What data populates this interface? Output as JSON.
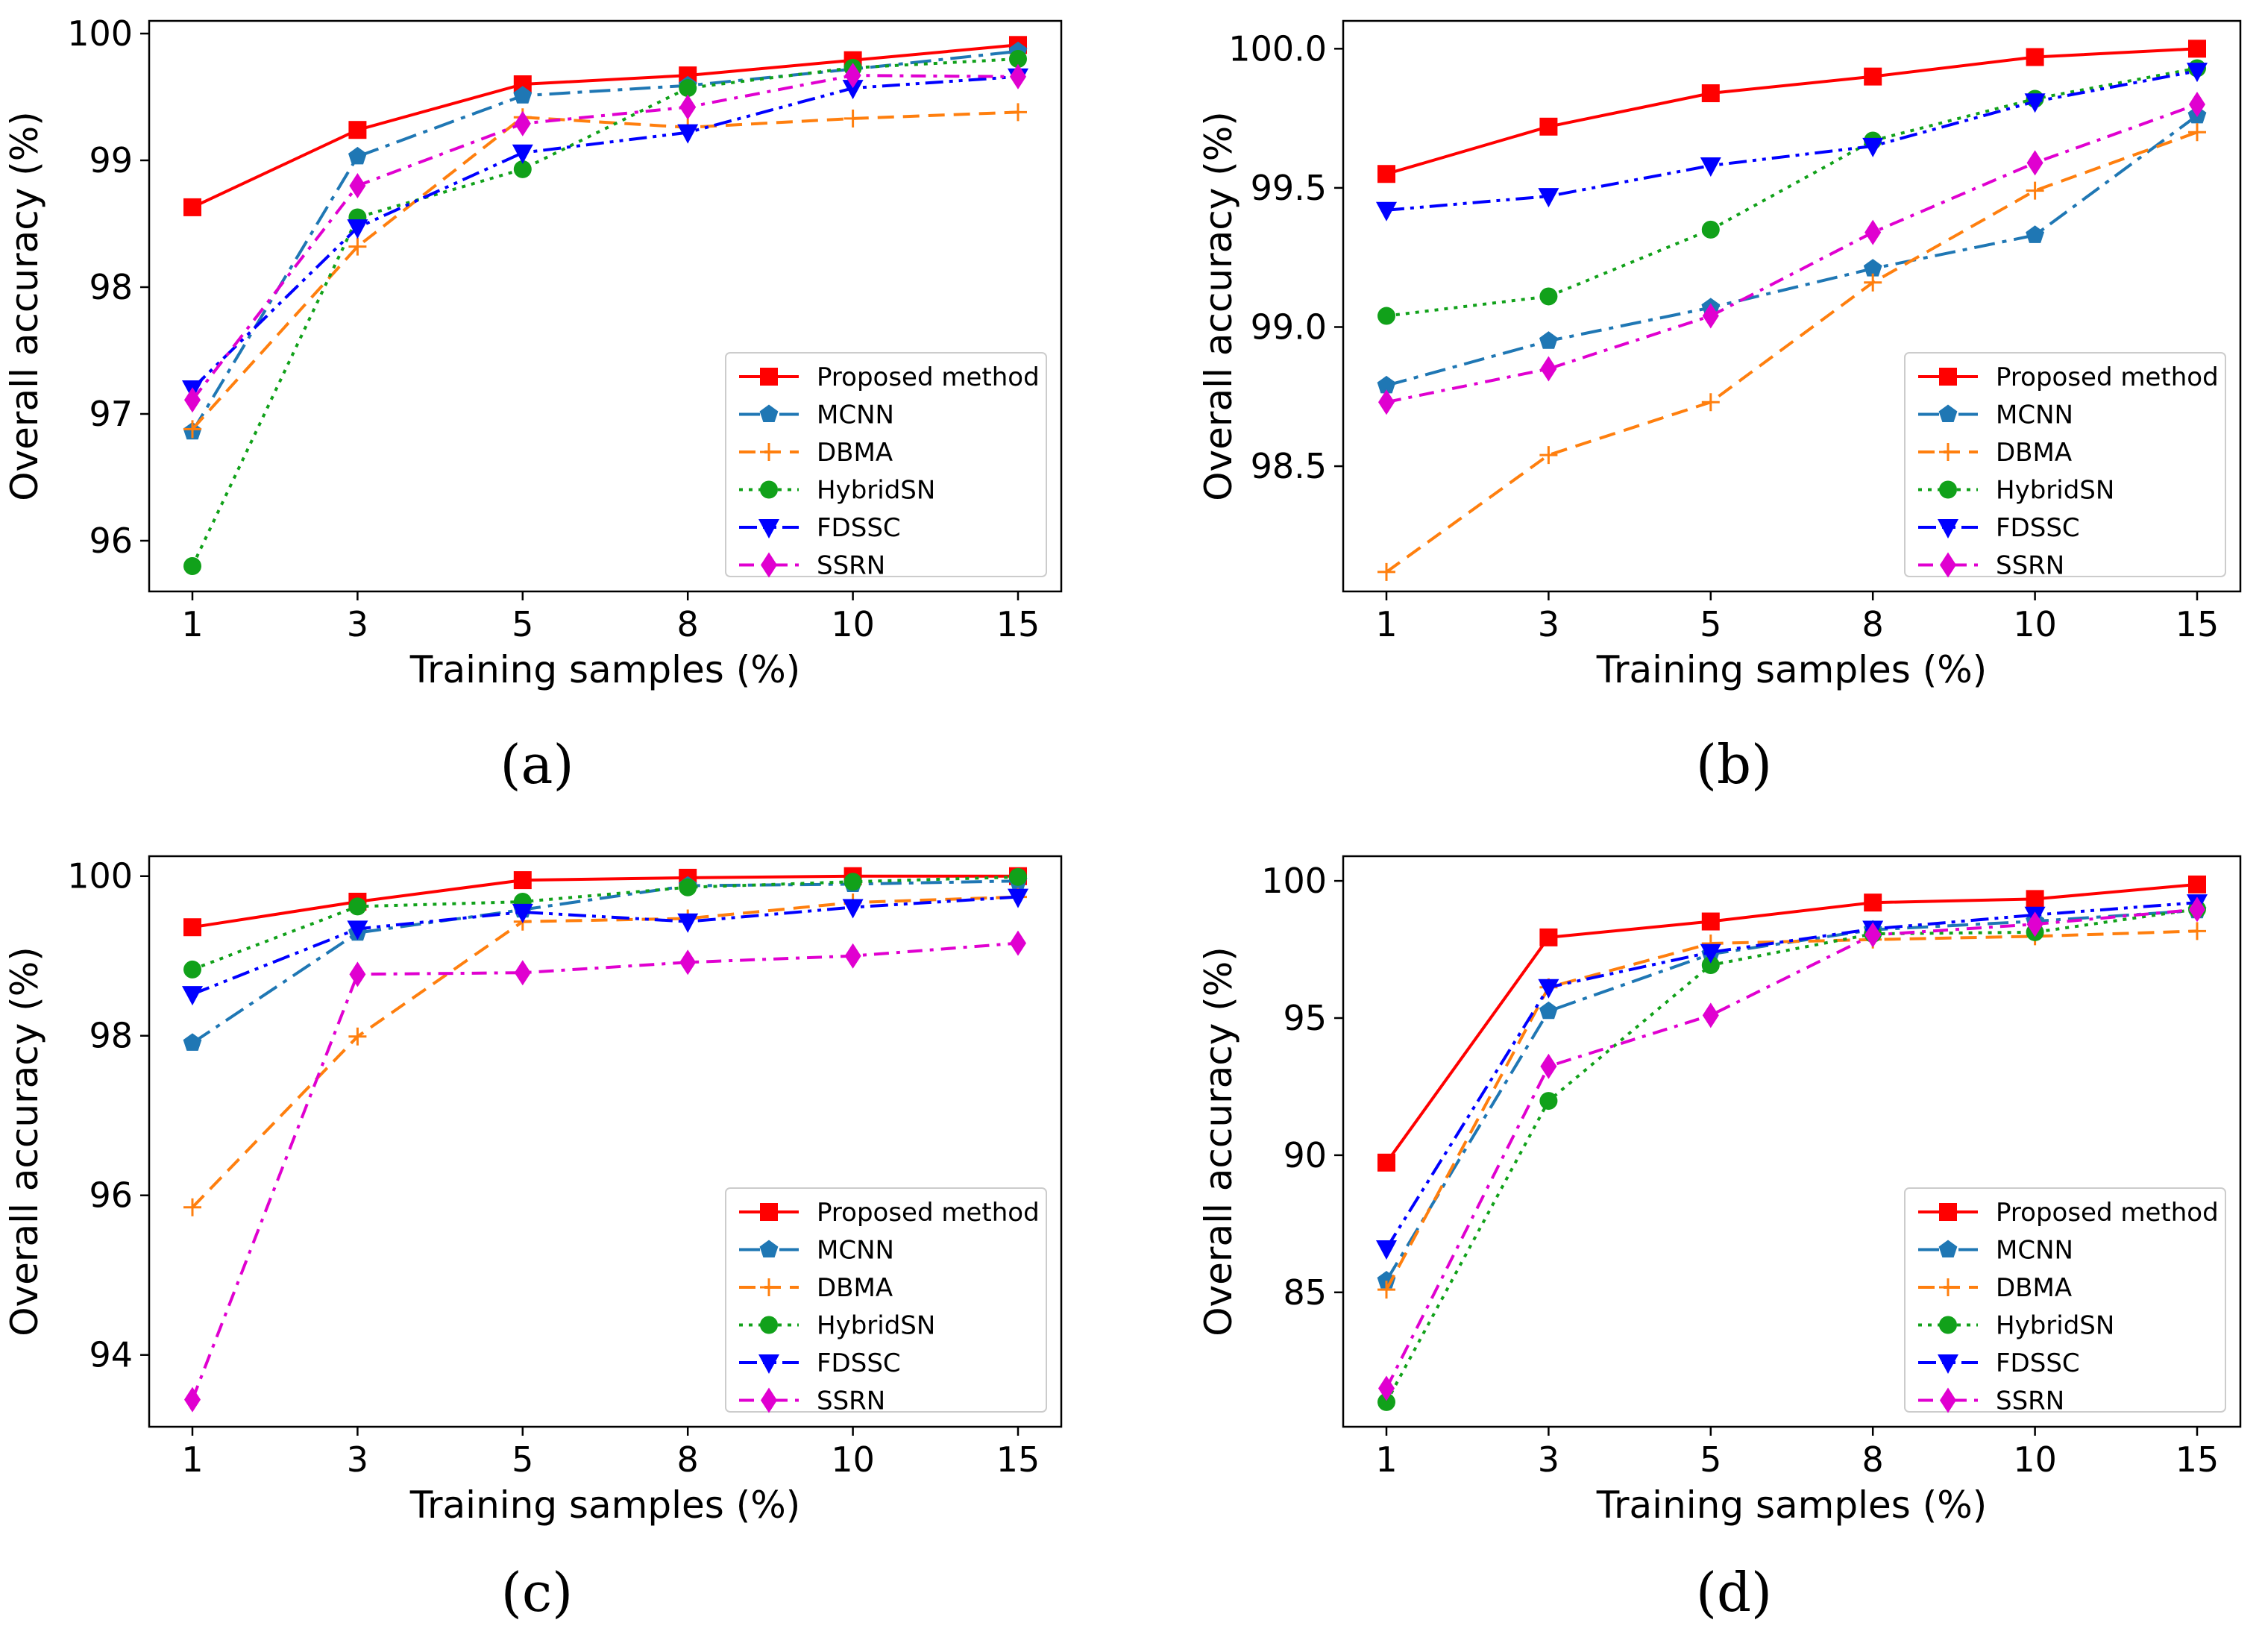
{
  "colors": {
    "Proposed method": "#ff0000",
    "MCNN": "#1f77b4",
    "DBMA": "#ff7f0e",
    "HybridSN": "#11a11a",
    "FDSSC": "#0000ff",
    "SSRN": "#e000d0"
  },
  "chart_data": [
    {
      "panel": "a",
      "caption": "(a)",
      "type": "line",
      "xlabel": "Training samples (%)",
      "ylabel": "Overall accuracy (%)",
      "categories": [
        "1",
        "3",
        "5",
        "8",
        "10",
        "15"
      ],
      "ylim": [
        95.6,
        100.1
      ],
      "yticks": [
        "96",
        "97",
        "98",
        "99",
        "100"
      ],
      "legend_position": "lower-right",
      "series": [
        {
          "name": "Proposed method",
          "marker": "square",
          "dash": "solid",
          "values": [
            98.63,
            99.24,
            99.6,
            99.67,
            99.79,
            99.91
          ]
        },
        {
          "name": "MCNN",
          "marker": "pentagon",
          "dash": "dashdot",
          "values": [
            96.86,
            99.03,
            99.51,
            99.59,
            99.72,
            99.86
          ]
        },
        {
          "name": "DBMA",
          "marker": "plus",
          "dash": "dashed",
          "values": [
            96.88,
            98.32,
            99.34,
            99.26,
            99.33,
            99.38
          ]
        },
        {
          "name": "HybridSN",
          "marker": "circle",
          "dash": "dotted",
          "values": [
            95.8,
            98.55,
            98.93,
            99.57,
            99.73,
            99.8
          ]
        },
        {
          "name": "FDSSC",
          "marker": "triangle-down",
          "dash": "dashdotdot",
          "values": [
            97.2,
            98.47,
            99.06,
            99.22,
            99.57,
            99.66
          ]
        },
        {
          "name": "SSRN",
          "marker": "diamond",
          "dash": "dashdot2",
          "values": [
            97.11,
            98.8,
            99.29,
            99.42,
            99.67,
            99.66
          ]
        }
      ]
    },
    {
      "panel": "b",
      "caption": "(b)",
      "type": "line",
      "xlabel": "Training samples (%)",
      "ylabel": "Overall accuracy (%)",
      "categories": [
        "1",
        "3",
        "5",
        "8",
        "10",
        "15"
      ],
      "ylim": [
        98.05,
        100.1
      ],
      "yticks": [
        "98.5",
        "99.0",
        "99.5",
        "100.0"
      ],
      "legend_position": "lower-right",
      "series": [
        {
          "name": "Proposed method",
          "marker": "square",
          "dash": "solid",
          "values": [
            99.55,
            99.72,
            99.84,
            99.9,
            99.97,
            100.0
          ]
        },
        {
          "name": "MCNN",
          "marker": "pentagon",
          "dash": "dashdot",
          "values": [
            98.79,
            98.95,
            99.07,
            99.21,
            99.33,
            99.76
          ]
        },
        {
          "name": "DBMA",
          "marker": "plus",
          "dash": "dashed",
          "values": [
            98.12,
            98.54,
            98.73,
            99.16,
            99.49,
            99.7
          ]
        },
        {
          "name": "HybridSN",
          "marker": "circle",
          "dash": "dotted",
          "values": [
            99.04,
            99.11,
            99.35,
            99.67,
            99.82,
            99.93
          ]
        },
        {
          "name": "FDSSC",
          "marker": "triangle-down",
          "dash": "dashdotdot",
          "values": [
            99.42,
            99.47,
            99.58,
            99.65,
            99.81,
            99.92
          ]
        },
        {
          "name": "SSRN",
          "marker": "diamond",
          "dash": "dashdot2",
          "values": [
            98.73,
            98.85,
            99.04,
            99.34,
            99.59,
            99.8
          ]
        }
      ]
    },
    {
      "panel": "c",
      "caption": "(c)",
      "type": "line",
      "xlabel": "Training samples (%)",
      "ylabel": "Overall accuracy (%)",
      "categories": [
        "1",
        "3",
        "5",
        "8",
        "10",
        "15"
      ],
      "ylim": [
        93.1,
        100.25
      ],
      "yticks": [
        "94",
        "96",
        "98",
        "100"
      ],
      "legend_position": "lower-right",
      "series": [
        {
          "name": "Proposed method",
          "marker": "square",
          "dash": "solid",
          "values": [
            99.36,
            99.68,
            99.95,
            99.98,
            100.0,
            100.0
          ]
        },
        {
          "name": "MCNN",
          "marker": "pentagon",
          "dash": "dashdot",
          "values": [
            97.91,
            99.29,
            99.58,
            99.88,
            99.9,
            99.94
          ]
        },
        {
          "name": "DBMA",
          "marker": "plus",
          "dash": "dashed",
          "values": [
            95.85,
            97.99,
            99.43,
            99.47,
            99.67,
            99.74
          ]
        },
        {
          "name": "HybridSN",
          "marker": "circle",
          "dash": "dotted",
          "values": [
            98.83,
            99.62,
            99.68,
            99.86,
            99.93,
            99.99
          ]
        },
        {
          "name": "FDSSC",
          "marker": "triangle-down",
          "dash": "dashdotdot",
          "values": [
            98.52,
            99.34,
            99.55,
            99.43,
            99.61,
            99.74
          ]
        },
        {
          "name": "SSRN",
          "marker": "diamond",
          "dash": "dashdot2",
          "values": [
            93.44,
            98.77,
            98.79,
            98.92,
            99.0,
            99.16
          ]
        }
      ]
    },
    {
      "panel": "d",
      "caption": "(d)",
      "type": "line",
      "xlabel": "Training samples (%)",
      "ylabel": "Overall accuracy (%)",
      "categories": [
        "1",
        "3",
        "5",
        "8",
        "10",
        "15"
      ],
      "ylim": [
        80.1,
        100.9
      ],
      "yticks": [
        "85",
        "90",
        "95",
        "100"
      ],
      "legend_position": "lower-right",
      "series": [
        {
          "name": "Proposed method",
          "marker": "square",
          "dash": "solid",
          "values": [
            89.73,
            97.94,
            98.52,
            99.21,
            99.34,
            99.87
          ]
        },
        {
          "name": "MCNN",
          "marker": "pentagon",
          "dash": "dashdot",
          "values": [
            85.43,
            95.25,
            97.33,
            98.22,
            98.53,
            98.92
          ]
        },
        {
          "name": "DBMA",
          "marker": "plus",
          "dash": "dashed",
          "values": [
            85.1,
            96.12,
            97.72,
            97.86,
            97.98,
            98.17
          ]
        },
        {
          "name": "HybridSN",
          "marker": "circle",
          "dash": "dotted",
          "values": [
            81.0,
            91.98,
            96.93,
            98.07,
            98.13,
            98.97
          ]
        },
        {
          "name": "FDSSC",
          "marker": "triangle-down",
          "dash": "dashdotdot",
          "values": [
            86.6,
            96.12,
            97.4,
            98.25,
            98.76,
            99.21
          ]
        },
        {
          "name": "SSRN",
          "marker": "diamond",
          "dash": "dashdot2",
          "values": [
            81.5,
            93.24,
            95.1,
            98.03,
            98.42,
            98.96
          ]
        }
      ]
    }
  ]
}
